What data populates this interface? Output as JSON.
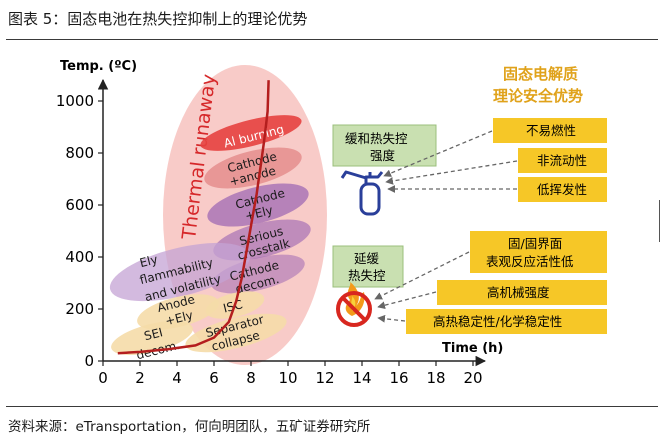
{
  "figure_title": "图表 5：固态电池在热失控抑制上的理论优势",
  "source": "资料来源：eTransportation，何向明团队，五矿证券研究所",
  "chart_data": {
    "type": "line",
    "ylabel": "Temp. (ºC)",
    "xlabel": "Time (h)",
    "xlim": [
      0,
      20
    ],
    "ylim": [
      0,
      1000
    ],
    "x_ticks": [
      "0",
      "2",
      "4",
      "6",
      "8",
      "10",
      "12",
      "14",
      "16",
      "18",
      "20"
    ],
    "y_ticks": [
      "0",
      "200",
      "400",
      "600",
      "800",
      "1000"
    ],
    "x": [
      0.8,
      2.0,
      3.5,
      5.0,
      6.0,
      6.8,
      7.2,
      7.5,
      7.7,
      7.9,
      8.1,
      8.3,
      8.4,
      8.5,
      8.6,
      8.7,
      8.8,
      8.9,
      8.95
    ],
    "y": [
      30,
      35,
      45,
      60,
      90,
      150,
      230,
      320,
      400,
      480,
      560,
      640,
      690,
      740,
      790,
      840,
      900,
      960,
      1080
    ],
    "annotations": {
      "thermal_runaway": "Thermal runaway",
      "ai_burning": "Al burning",
      "cathode_anode_1": "Cathode",
      "cathode_anode_2": "+anode",
      "cathode_ely_1": "Cathode",
      "cathode_ely_2": "+Ely",
      "serious_1": "Serious",
      "serious_2": "crosstalk",
      "cathode_decom_1": "Cathode",
      "cathode_decom_2": "decom.",
      "ely_1": "Ely",
      "ely_2": "flammability",
      "ely_3": "and volatility",
      "anode_ely_1": "Anode",
      "anode_ely_2": "+Ely",
      "isc": "ISC",
      "sei_1": "SEI",
      "sei_2": "decom.",
      "separator_1": "Separator",
      "separator_2": "collapse"
    }
  },
  "panel": {
    "title_line1": "固态电解质",
    "title_line2": "理论安全优势",
    "box_mitigate_line1": "缓和热失控",
    "box_mitigate_line2": "强度",
    "box_delay_line1": "延缓",
    "box_delay_line2": "热失控",
    "adv_nonflammable": "不易燃性",
    "adv_nonfluid": "非流动性",
    "adv_lowvolatility": "低挥发性",
    "adv_interface_line1": "固/固界面",
    "adv_interface_line2": "表观反应活性低",
    "adv_mechanical": "高机械强度",
    "adv_stability": "高热稳定性/化学稳定性"
  },
  "colors": {
    "curve": "#b41e1e",
    "thermal_runaway_text": "#d6282a",
    "panel_title": "#e0a21a",
    "green_box": "#c9e0b1",
    "gold_box": "#f6c727",
    "extinguisher": "#2a3f9a",
    "no_fire": "#d8271f"
  }
}
